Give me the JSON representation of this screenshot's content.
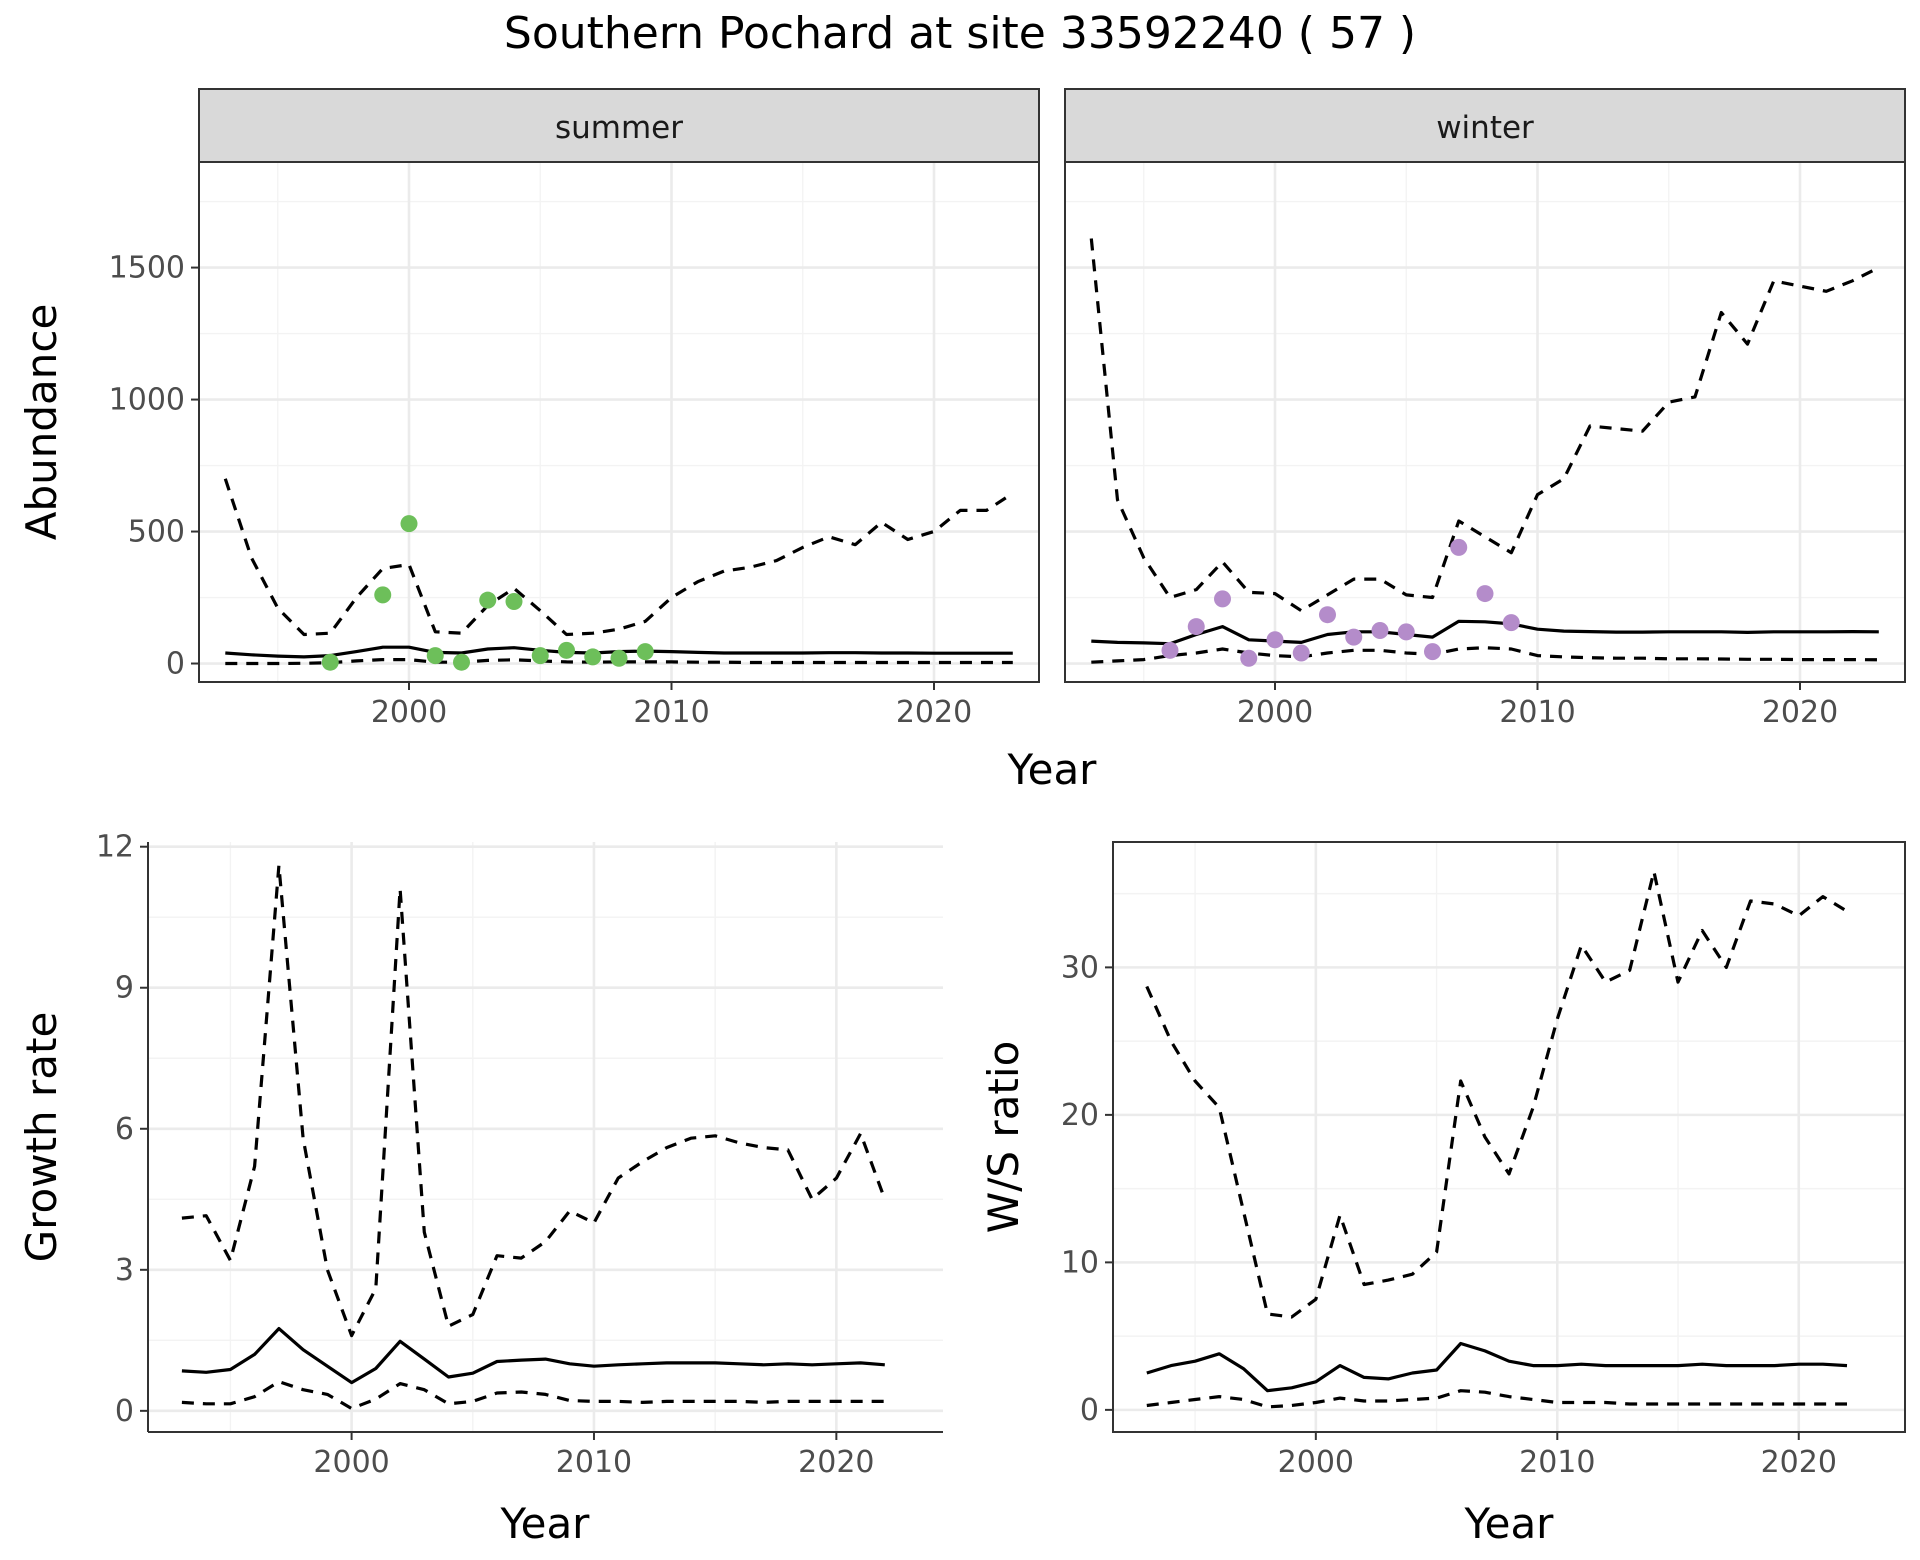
{
  "title": "Southern Pochard at site 33592240 ( 57 )",
  "colors": {
    "summer_points": "#6dbf5a",
    "winter_points": "#b48cca",
    "strip_fill": "#d9d9d9"
  },
  "chart_data": [
    {
      "type": "line",
      "facet": "summer",
      "xlabel": "Year",
      "ylabel": "Abundance",
      "xlim": [
        1992,
        2024
      ],
      "ylim": [
        -70,
        1900
      ],
      "xticks": [
        2000,
        2010,
        2020
      ],
      "yticks": [
        0,
        500,
        1000,
        1500
      ],
      "grid": true,
      "x": [
        1993,
        1994,
        1995,
        1996,
        1997,
        1998,
        1999,
        2000,
        2001,
        2002,
        2003,
        2004,
        2005,
        2006,
        2007,
        2008,
        2009,
        2010,
        2011,
        2012,
        2013,
        2014,
        2015,
        2016,
        2017,
        2018,
        2019,
        2020,
        2021,
        2022,
        2023
      ],
      "series": [
        {
          "style": "solid",
          "values": [
            40,
            33,
            28,
            25,
            30,
            45,
            62,
            62,
            42,
            40,
            55,
            60,
            50,
            42,
            40,
            45,
            47,
            45,
            42,
            40,
            40,
            40,
            40,
            41,
            41,
            40,
            40,
            39,
            39,
            39,
            39
          ]
        },
        {
          "style": "dashed",
          "values": [
            700,
            400,
            210,
            110,
            115,
            250,
            360,
            375,
            120,
            115,
            220,
            285,
            200,
            110,
            115,
            130,
            160,
            250,
            310,
            350,
            365,
            390,
            440,
            480,
            450,
            535,
            470,
            500,
            580,
            580,
            645
          ]
        },
        {
          "style": "dashed",
          "values": [
            0,
            0,
            0,
            1,
            3,
            10,
            15,
            15,
            5,
            5,
            12,
            14,
            10,
            6,
            5,
            6,
            6,
            6,
            5,
            5,
            4,
            4,
            4,
            4,
            4,
            4,
            4,
            4,
            4,
            4,
            4
          ]
        }
      ],
      "points": {
        "x": [
          1997,
          1999,
          2000,
          2001,
          2002,
          2003,
          2004,
          2005,
          2006,
          2007,
          2008,
          2009
        ],
        "y": [
          5,
          260,
          530,
          30,
          5,
          240,
          235,
          30,
          50,
          25,
          20,
          45
        ]
      }
    },
    {
      "type": "line",
      "facet": "winter",
      "xlabel": "Year",
      "ylabel": "Abundance",
      "xlim": [
        1992,
        2024
      ],
      "ylim": [
        -70,
        1900
      ],
      "xticks": [
        2000,
        2010,
        2020
      ],
      "yticks": [
        0,
        500,
        1000,
        1500
      ],
      "grid": true,
      "x": [
        1993,
        1994,
        1995,
        1996,
        1997,
        1998,
        1999,
        2000,
        2001,
        2002,
        2003,
        2004,
        2005,
        2006,
        2007,
        2008,
        2009,
        2010,
        2011,
        2012,
        2013,
        2014,
        2015,
        2016,
        2017,
        2018,
        2019,
        2020,
        2021,
        2022,
        2023
      ],
      "series": [
        {
          "style": "solid",
          "values": [
            85,
            80,
            78,
            75,
            110,
            140,
            90,
            85,
            80,
            110,
            120,
            120,
            110,
            100,
            160,
            158,
            150,
            130,
            123,
            121,
            119,
            119,
            120,
            120,
            120,
            118,
            120,
            120,
            120,
            121,
            120
          ]
        },
        {
          "style": "dashed",
          "values": [
            1610,
            620,
            400,
            250,
            280,
            385,
            270,
            265,
            200,
            260,
            320,
            320,
            260,
            250,
            540,
            480,
            420,
            640,
            700,
            900,
            890,
            880,
            990,
            1010,
            1330,
            1210,
            1450,
            1430,
            1410,
            1450,
            1500
          ]
        },
        {
          "style": "dashed",
          "values": [
            5,
            10,
            15,
            30,
            40,
            55,
            40,
            30,
            25,
            40,
            50,
            50,
            40,
            35,
            55,
            60,
            55,
            30,
            25,
            22,
            20,
            20,
            18,
            18,
            17,
            16,
            16,
            15,
            15,
            15,
            14
          ]
        }
      ],
      "points": {
        "x": [
          1996,
          1997,
          1998,
          1999,
          2000,
          2001,
          2002,
          2003,
          2004,
          2005,
          2006,
          2007,
          2008,
          2009
        ],
        "y": [
          50,
          140,
          245,
          20,
          90,
          40,
          185,
          100,
          125,
          120,
          45,
          440,
          265,
          155
        ]
      }
    },
    {
      "type": "line",
      "xlabel": "Year",
      "ylabel": "Growth rate",
      "xlim": [
        1991.6,
        2024.4
      ],
      "ylim": [
        -0.45,
        12.1
      ],
      "xticks": [
        2000,
        2010,
        2020
      ],
      "yticks": [
        0,
        3,
        6,
        9,
        12
      ],
      "grid": true,
      "x": [
        1993,
        1994,
        1995,
        1996,
        1997,
        1998,
        1999,
        2000,
        2001,
        2002,
        2003,
        2004,
        2005,
        2006,
        2007,
        2008,
        2009,
        2010,
        2011,
        2012,
        2013,
        2014,
        2015,
        2016,
        2017,
        2018,
        2019,
        2020,
        2021,
        2022
      ],
      "series": [
        {
          "style": "solid",
          "values": [
            0.85,
            0.82,
            0.88,
            1.2,
            1.75,
            1.3,
            0.95,
            0.6,
            0.9,
            1.48,
            1.1,
            0.72,
            0.8,
            1.05,
            1.08,
            1.1,
            1.0,
            0.95,
            0.98,
            1.0,
            1.02,
            1.02,
            1.02,
            1.0,
            0.98,
            1.0,
            0.98,
            1.0,
            1.02,
            0.98
          ]
        },
        {
          "style": "dashed",
          "values": [
            4.1,
            4.15,
            3.2,
            5.2,
            11.6,
            5.8,
            3.0,
            1.6,
            2.6,
            11.1,
            3.8,
            1.8,
            2.05,
            3.3,
            3.25,
            3.6,
            4.25,
            4.0,
            4.95,
            5.3,
            5.6,
            5.8,
            5.85,
            5.7,
            5.6,
            5.55,
            4.5,
            4.95,
            5.9,
            4.5
          ]
        },
        {
          "style": "dashed",
          "values": [
            0.18,
            0.15,
            0.15,
            0.3,
            0.62,
            0.45,
            0.35,
            0.05,
            0.25,
            0.58,
            0.45,
            0.15,
            0.2,
            0.38,
            0.4,
            0.35,
            0.22,
            0.2,
            0.2,
            0.18,
            0.2,
            0.2,
            0.2,
            0.2,
            0.18,
            0.2,
            0.2,
            0.2,
            0.2,
            0.2
          ]
        }
      ]
    },
    {
      "type": "line",
      "xlabel": "Year",
      "ylabel": "W/S ratio",
      "xlim": [
        1991.6,
        2024.4
      ],
      "ylim": [
        -1.5,
        38.5
      ],
      "xticks": [
        2000,
        2010,
        2020
      ],
      "yticks": [
        0,
        10,
        20,
        30
      ],
      "grid": true,
      "x": [
        1993,
        1994,
        1995,
        1996,
        1997,
        1998,
        1999,
        2000,
        2001,
        2002,
        2003,
        2004,
        2005,
        2006,
        2007,
        2008,
        2009,
        2010,
        2011,
        2012,
        2013,
        2014,
        2015,
        2016,
        2017,
        2018,
        2019,
        2020,
        2021,
        2022
      ],
      "series": [
        {
          "style": "solid",
          "values": [
            2.5,
            3.0,
            3.3,
            3.8,
            2.8,
            1.3,
            1.5,
            1.9,
            3.0,
            2.2,
            2.1,
            2.5,
            2.7,
            4.5,
            4.0,
            3.3,
            3.0,
            3.0,
            3.1,
            3.0,
            3.0,
            3.0,
            3.0,
            3.1,
            3.0,
            3.0,
            3.0,
            3.1,
            3.1,
            3.0
          ]
        },
        {
          "style": "dashed",
          "values": [
            28.7,
            25.0,
            22.3,
            20.5,
            13.5,
            6.5,
            6.3,
            7.5,
            13.2,
            8.5,
            8.8,
            9.2,
            10.7,
            22.3,
            18.5,
            16.0,
            20.5,
            26.5,
            31.5,
            29.0,
            29.8,
            36.5,
            29.0,
            32.5,
            30.0,
            34.5,
            34.3,
            33.5,
            34.8,
            33.8
          ]
        },
        {
          "style": "dashed",
          "values": [
            0.3,
            0.5,
            0.7,
            0.9,
            0.7,
            0.2,
            0.3,
            0.5,
            0.8,
            0.6,
            0.6,
            0.7,
            0.8,
            1.3,
            1.2,
            0.9,
            0.7,
            0.5,
            0.5,
            0.5,
            0.4,
            0.4,
            0.4,
            0.4,
            0.4,
            0.4,
            0.4,
            0.4,
            0.4,
            0.4
          ]
        }
      ]
    }
  ]
}
